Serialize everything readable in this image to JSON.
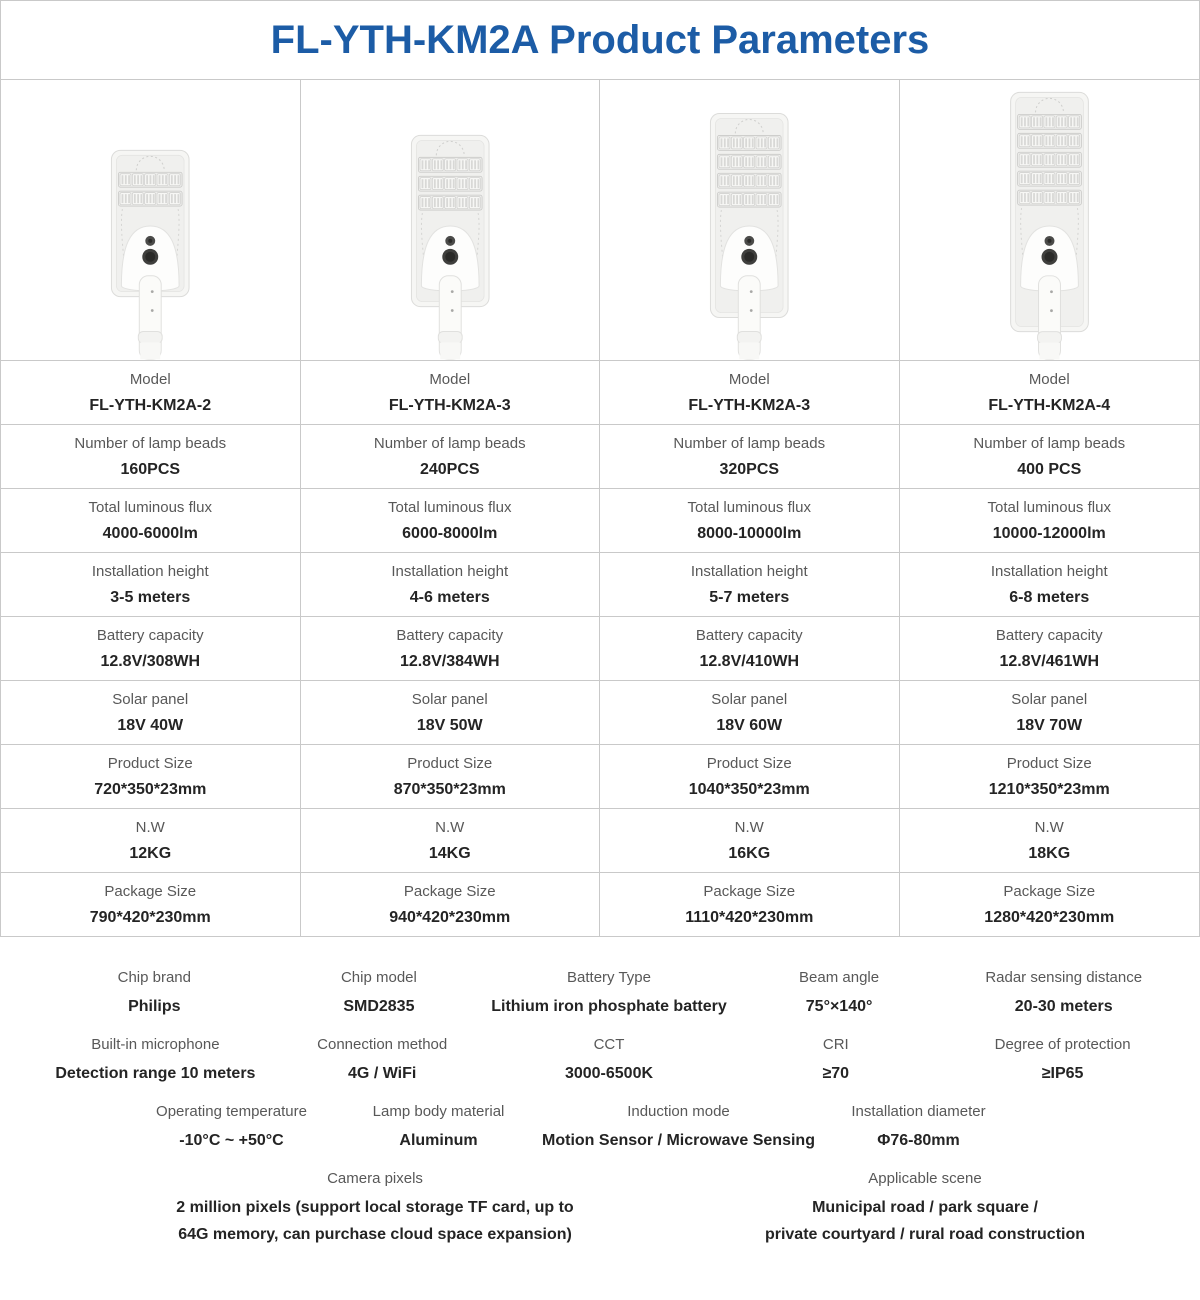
{
  "title": "FL-YTH-KM2A Product Parameters",
  "colors": {
    "title_blue": "#1c5ca6",
    "label_gray": "#585858",
    "value_dark": "#242424",
    "border_gray": "#c9c9c9"
  },
  "products": [
    {
      "image": "streetlight-illustration",
      "led_rows": 2
    },
    {
      "image": "streetlight-illustration",
      "led_rows": 3
    },
    {
      "image": "streetlight-illustration",
      "led_rows": 4
    },
    {
      "image": "streetlight-illustration",
      "led_rows": 5
    }
  ],
  "table": {
    "rows": [
      {
        "label": "Model",
        "values": [
          "FL-YTH-KM2A-2",
          "FL-YTH-KM2A-3",
          "FL-YTH-KM2A-3",
          "FL-YTH-KM2A-4"
        ]
      },
      {
        "label": "Number of lamp beads",
        "values": [
          "160PCS",
          "240PCS",
          "320PCS",
          "400 PCS"
        ]
      },
      {
        "label": "Total luminous flux",
        "values": [
          "4000-6000lm",
          "6000-8000lm",
          "8000-10000lm",
          "10000-12000lm"
        ]
      },
      {
        "label": "Installation height",
        "values": [
          "3-5 meters",
          "4-6 meters",
          "5-7 meters",
          "6-8 meters"
        ]
      },
      {
        "label": "Battery capacity",
        "values": [
          "12.8V/308WH",
          "12.8V/384WH",
          "12.8V/410WH",
          "12.8V/461WH"
        ]
      },
      {
        "label": "Solar panel",
        "values": [
          "18V 40W",
          "18V 50W",
          "18V 60W",
          "18V 70W"
        ]
      },
      {
        "label": "Product Size",
        "values": [
          "720*350*23mm",
          "870*350*23mm",
          "1040*350*23mm",
          "1210*350*23mm"
        ]
      },
      {
        "label": "N.W",
        "values": [
          "12KG",
          "14KG",
          "16KG",
          "18KG"
        ]
      },
      {
        "label": "Package Size",
        "values": [
          "790*420*230mm",
          "940*420*230mm",
          "1110*420*230mm",
          "1280*420*230mm"
        ]
      }
    ]
  },
  "extra_specs": {
    "row1": [
      {
        "label": "Chip brand",
        "value": "Philips"
      },
      {
        "label": "Chip model",
        "value": "SMD2835"
      },
      {
        "label": "Battery Type",
        "value": "Lithium iron phosphate battery"
      },
      {
        "label": "Beam angle",
        "value": "75°×140°"
      },
      {
        "label": "Radar sensing distance",
        "value": "20-30 meters"
      }
    ],
    "row2": [
      {
        "label": "Built-in microphone",
        "value": "Detection range 10 meters"
      },
      {
        "label": "Connection method",
        "value": "4G / WiFi"
      },
      {
        "label": "CCT",
        "value": "3000-6500K"
      },
      {
        "label": "CRI",
        "value": "≥70"
      },
      {
        "label": "Degree of protection",
        "value": "≥IP65"
      }
    ],
    "row3": [
      {
        "label": "Operating temperature",
        "value": "-10°C ~ +50°C"
      },
      {
        "label": "Lamp body material",
        "value": "Aluminum"
      },
      {
        "label": "Induction mode",
        "value": "Motion Sensor / Microwave Sensing"
      },
      {
        "label": "Installation diameter",
        "value": "Φ76-80mm"
      }
    ],
    "row4": [
      {
        "label": "Camera pixels",
        "value": "2 million pixels (support local storage TF card, up to\n64G memory, can purchase cloud space expansion)"
      },
      {
        "label": "Applicable scene",
        "value": "Municipal road / park square /\nprivate courtyard / rural road construction"
      }
    ]
  }
}
